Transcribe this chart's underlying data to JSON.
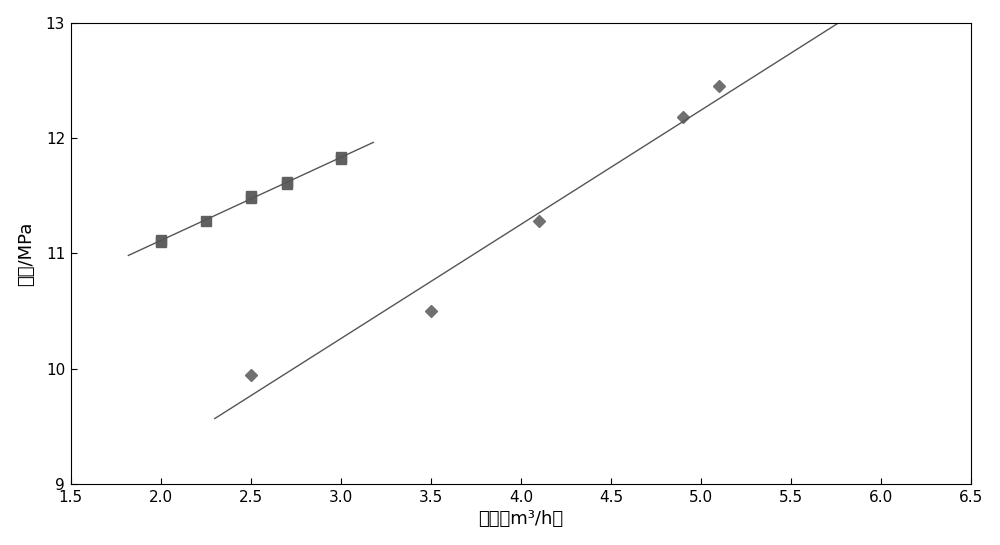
{
  "series1_x": [
    2.0,
    2.0,
    2.25,
    2.5,
    2.5,
    2.7,
    2.7,
    3.0,
    3.0
  ],
  "series1_y": [
    11.1,
    11.12,
    11.28,
    11.48,
    11.5,
    11.6,
    11.62,
    11.82,
    11.84
  ],
  "series2_x": [
    2.5,
    3.5,
    4.1,
    4.9,
    5.1
  ],
  "series2_y": [
    9.95,
    10.5,
    11.28,
    12.18,
    12.45
  ],
  "line1_x_start": 1.82,
  "line1_x_end": 3.18,
  "line2_x_start": 2.3,
  "line2_x_end": 6.1,
  "xlim": [
    1.5,
    6.5
  ],
  "ylim": [
    9.0,
    13.0
  ],
  "xticks": [
    1.5,
    2.0,
    2.5,
    3.0,
    3.5,
    4.0,
    4.5,
    5.0,
    5.5,
    6.0,
    6.5
  ],
  "yticks": [
    9,
    10,
    11,
    12,
    13
  ],
  "xlabel": "排量（m³/h）",
  "ylabel": "压力/MPa",
  "marker1": "s",
  "marker2": "D",
  "marker_color1": "#606060",
  "marker_color2": "#707070",
  "line_color": "#555555",
  "background_color": "#ffffff",
  "figsize": [
    10.0,
    5.45
  ],
  "dpi": 100
}
